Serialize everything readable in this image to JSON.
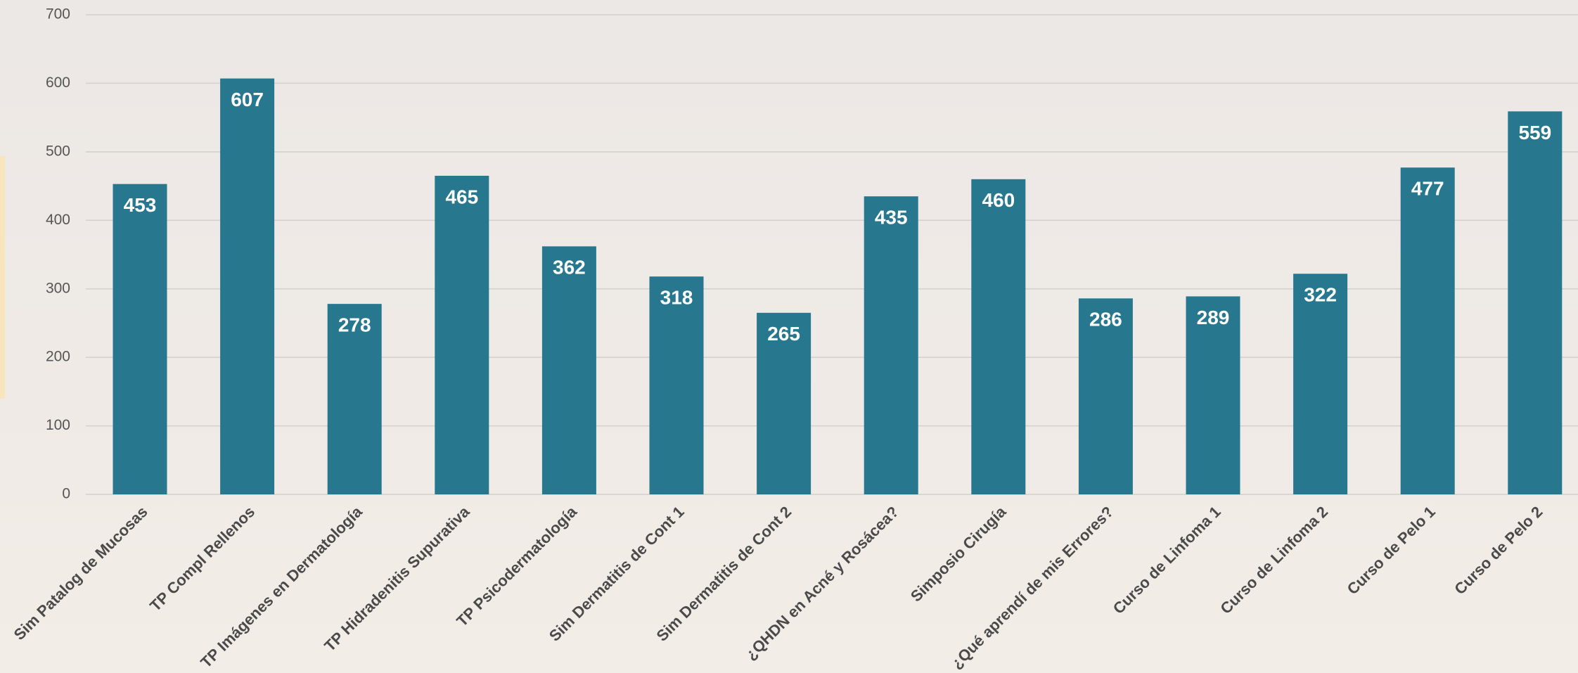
{
  "chart_data": {
    "type": "bar",
    "categories": [
      "Sim Patalog de Mucosas",
      "TP Compl Rellenos",
      "TP Imágenes en Dermatología",
      "TP Hidradenitis Supurativa",
      "TP Psicodermatología",
      "Sim Dermatitis de Cont 1",
      "Sim Dermatitis de Cont 2",
      "¿QHDN en Acné y Rosácea?",
      "Simposio Cirugía",
      "¿Qué aprendí de mis Errores?",
      "Curso de Linfoma 1",
      "Curso de Linfoma 2",
      "Curso de Pelo 1",
      "Curso de Pelo 2"
    ],
    "values": [
      453,
      607,
      278,
      465,
      362,
      318,
      265,
      435,
      460,
      286,
      289,
      322,
      477,
      559
    ],
    "color": "#27788e",
    "ylim": [
      0,
      700
    ],
    "yticks": [
      0,
      100,
      200,
      300,
      400,
      500,
      600,
      700
    ],
    "grid": true
  }
}
